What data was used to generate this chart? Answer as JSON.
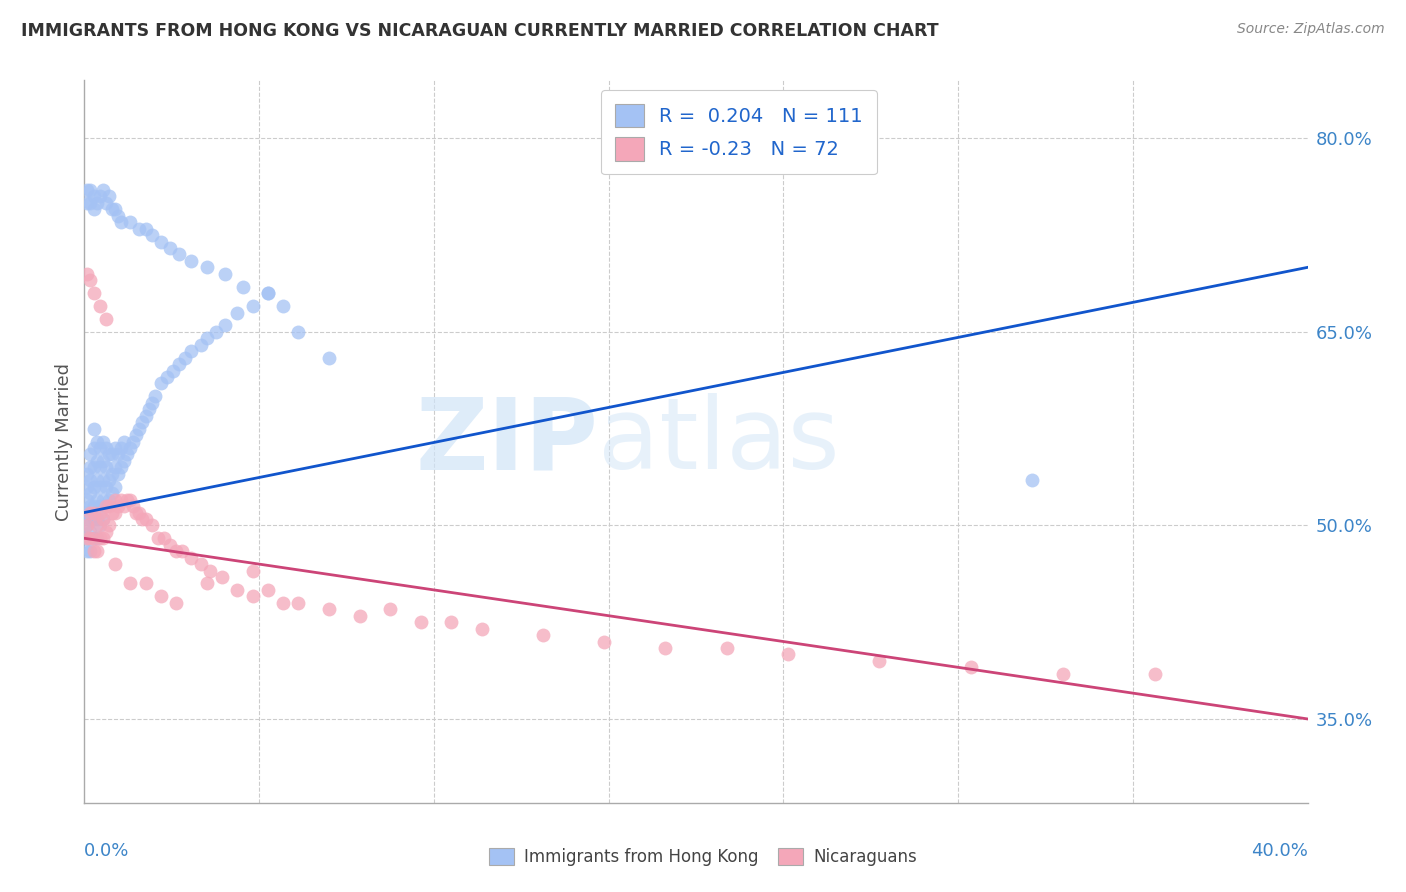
{
  "title": "IMMIGRANTS FROM HONG KONG VS NICARAGUAN CURRENTLY MARRIED CORRELATION CHART",
  "source": "Source: ZipAtlas.com",
  "ylabel": "Currently Married",
  "xmin": 0.0,
  "xmax": 0.4,
  "ymin": 0.285,
  "ymax": 0.845,
  "hk_R": 0.204,
  "hk_N": 111,
  "nic_R": -0.23,
  "nic_N": 72,
  "hk_color": "#a4c2f4",
  "nic_color": "#f4a7b9",
  "hk_line_color": "#1155cc",
  "nic_line_color": "#cc4477",
  "background_color": "#ffffff",
  "watermark_zip": "ZIP",
  "watermark_atlas": "atlas",
  "legend_label_hk": "Immigrants from Hong Kong",
  "legend_label_nic": "Nicaraguans",
  "ytick_vals": [
    0.35,
    0.5,
    0.65,
    0.8
  ],
  "hk_line_y0": 0.51,
  "hk_line_y1": 0.7,
  "nic_line_y0": 0.49,
  "nic_line_y1": 0.35,
  "hk_scatter_x": [
    0.001,
    0.001,
    0.001,
    0.001,
    0.001,
    0.001,
    0.001,
    0.002,
    0.002,
    0.002,
    0.002,
    0.002,
    0.002,
    0.002,
    0.002,
    0.003,
    0.003,
    0.003,
    0.003,
    0.003,
    0.003,
    0.003,
    0.004,
    0.004,
    0.004,
    0.004,
    0.004,
    0.004,
    0.005,
    0.005,
    0.005,
    0.005,
    0.005,
    0.006,
    0.006,
    0.006,
    0.006,
    0.006,
    0.007,
    0.007,
    0.007,
    0.007,
    0.008,
    0.008,
    0.008,
    0.009,
    0.009,
    0.009,
    0.01,
    0.01,
    0.01,
    0.011,
    0.011,
    0.012,
    0.012,
    0.013,
    0.013,
    0.014,
    0.015,
    0.016,
    0.017,
    0.018,
    0.019,
    0.02,
    0.021,
    0.022,
    0.023,
    0.025,
    0.027,
    0.029,
    0.031,
    0.033,
    0.035,
    0.038,
    0.04,
    0.043,
    0.046,
    0.05,
    0.055,
    0.06,
    0.001,
    0.001,
    0.002,
    0.002,
    0.003,
    0.003,
    0.004,
    0.005,
    0.006,
    0.007,
    0.008,
    0.009,
    0.01,
    0.011,
    0.012,
    0.015,
    0.018,
    0.02,
    0.022,
    0.025,
    0.028,
    0.031,
    0.035,
    0.04,
    0.046,
    0.052,
    0.06,
    0.065,
    0.07,
    0.08,
    0.31
  ],
  "hk_scatter_y": [
    0.48,
    0.49,
    0.5,
    0.51,
    0.52,
    0.53,
    0.54,
    0.48,
    0.495,
    0.505,
    0.515,
    0.525,
    0.535,
    0.545,
    0.555,
    0.49,
    0.505,
    0.515,
    0.53,
    0.545,
    0.56,
    0.575,
    0.49,
    0.505,
    0.52,
    0.535,
    0.55,
    0.565,
    0.5,
    0.515,
    0.53,
    0.545,
    0.56,
    0.505,
    0.52,
    0.535,
    0.55,
    0.565,
    0.515,
    0.53,
    0.545,
    0.56,
    0.52,
    0.535,
    0.555,
    0.525,
    0.54,
    0.555,
    0.53,
    0.545,
    0.56,
    0.54,
    0.555,
    0.545,
    0.56,
    0.55,
    0.565,
    0.555,
    0.56,
    0.565,
    0.57,
    0.575,
    0.58,
    0.585,
    0.59,
    0.595,
    0.6,
    0.61,
    0.615,
    0.62,
    0.625,
    0.63,
    0.635,
    0.64,
    0.645,
    0.65,
    0.655,
    0.665,
    0.67,
    0.68,
    0.75,
    0.76,
    0.75,
    0.76,
    0.745,
    0.755,
    0.75,
    0.755,
    0.76,
    0.75,
    0.755,
    0.745,
    0.745,
    0.74,
    0.735,
    0.735,
    0.73,
    0.73,
    0.725,
    0.72,
    0.715,
    0.71,
    0.705,
    0.7,
    0.695,
    0.685,
    0.68,
    0.67,
    0.65,
    0.63,
    0.535
  ],
  "nic_scatter_x": [
    0.001,
    0.001,
    0.002,
    0.002,
    0.003,
    0.003,
    0.003,
    0.004,
    0.004,
    0.005,
    0.005,
    0.006,
    0.006,
    0.007,
    0.007,
    0.008,
    0.008,
    0.009,
    0.01,
    0.01,
    0.011,
    0.012,
    0.013,
    0.014,
    0.015,
    0.016,
    0.017,
    0.018,
    0.019,
    0.02,
    0.022,
    0.024,
    0.026,
    0.028,
    0.03,
    0.032,
    0.035,
    0.038,
    0.041,
    0.045,
    0.05,
    0.055,
    0.06,
    0.065,
    0.07,
    0.08,
    0.09,
    0.1,
    0.11,
    0.12,
    0.13,
    0.15,
    0.17,
    0.19,
    0.21,
    0.23,
    0.26,
    0.29,
    0.32,
    0.35,
    0.001,
    0.002,
    0.003,
    0.005,
    0.007,
    0.01,
    0.015,
    0.02,
    0.025,
    0.03,
    0.04,
    0.055
  ],
  "nic_scatter_y": [
    0.49,
    0.5,
    0.49,
    0.51,
    0.48,
    0.49,
    0.51,
    0.48,
    0.5,
    0.49,
    0.51,
    0.49,
    0.505,
    0.495,
    0.515,
    0.5,
    0.515,
    0.51,
    0.51,
    0.52,
    0.515,
    0.52,
    0.515,
    0.52,
    0.52,
    0.515,
    0.51,
    0.51,
    0.505,
    0.505,
    0.5,
    0.49,
    0.49,
    0.485,
    0.48,
    0.48,
    0.475,
    0.47,
    0.465,
    0.46,
    0.45,
    0.445,
    0.45,
    0.44,
    0.44,
    0.435,
    0.43,
    0.435,
    0.425,
    0.425,
    0.42,
    0.415,
    0.41,
    0.405,
    0.405,
    0.4,
    0.395,
    0.39,
    0.385,
    0.385,
    0.695,
    0.69,
    0.68,
    0.67,
    0.66,
    0.47,
    0.455,
    0.455,
    0.445,
    0.44,
    0.455,
    0.465
  ]
}
